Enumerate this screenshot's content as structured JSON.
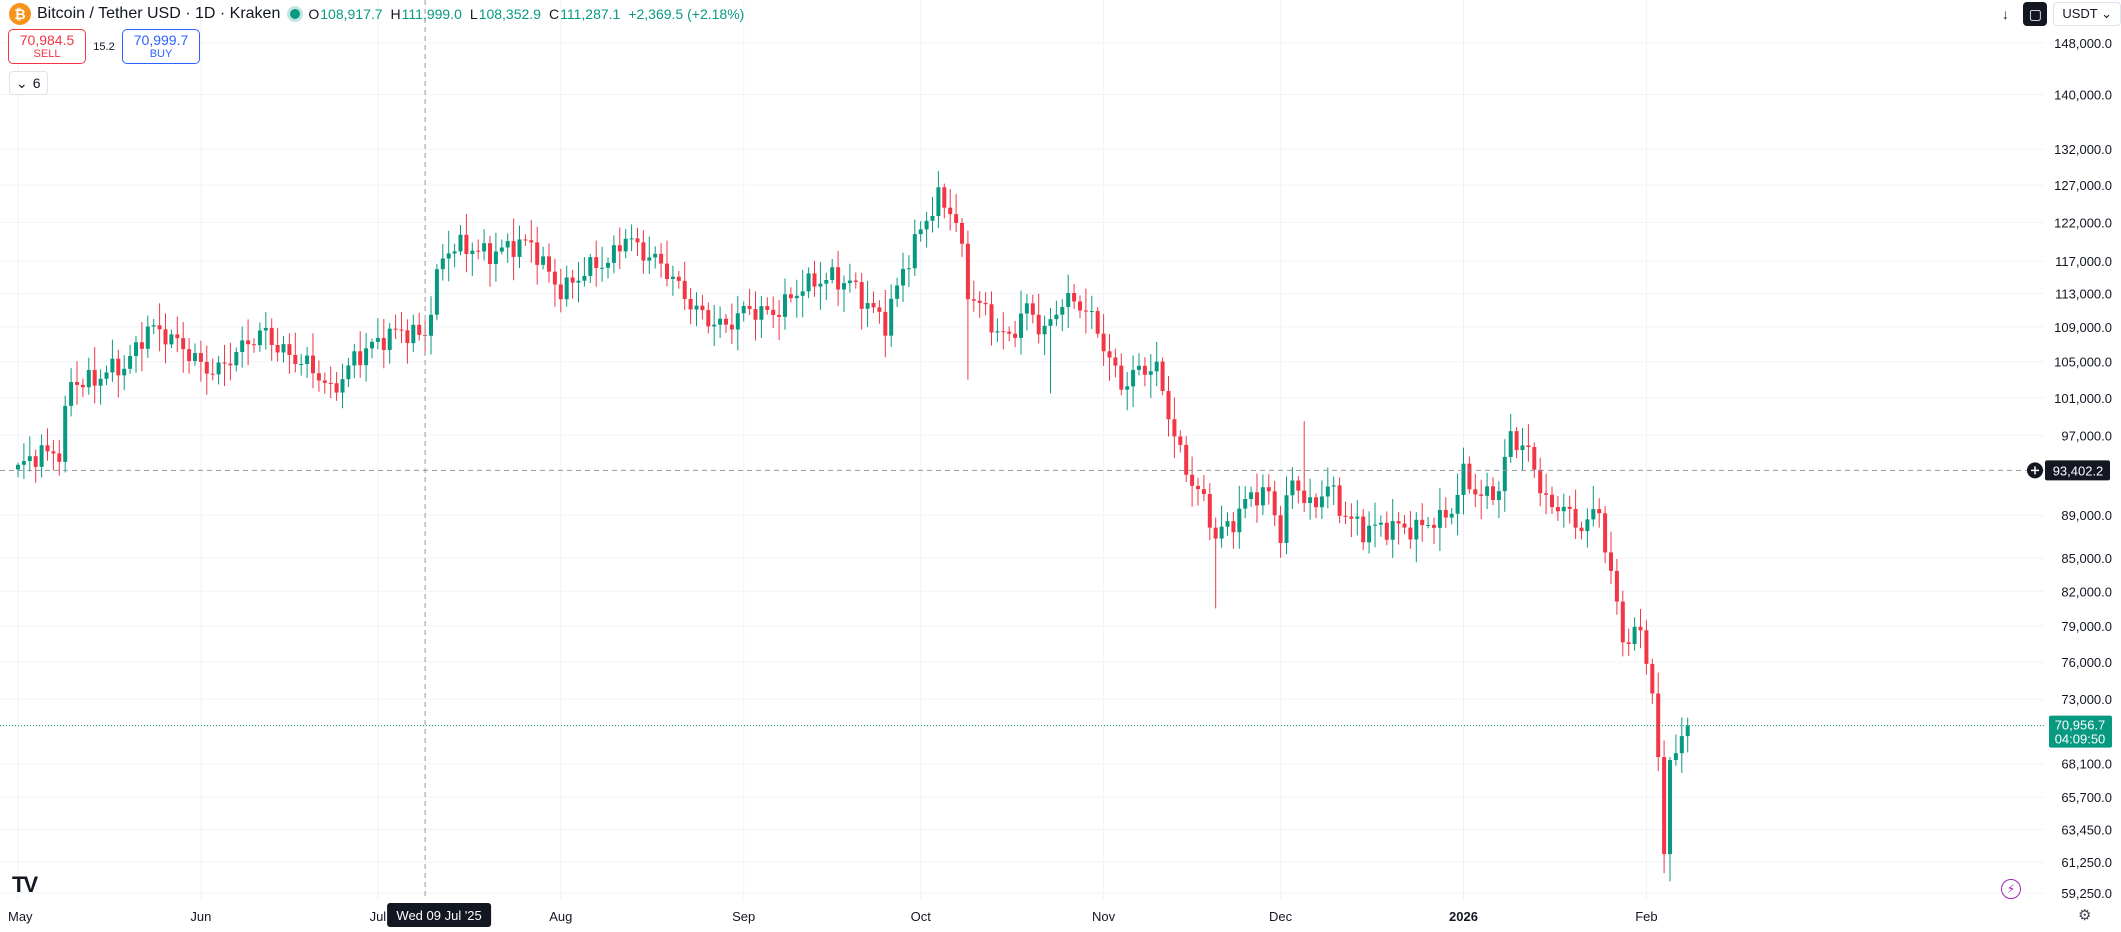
{
  "header": {
    "logo_glyph": "₿",
    "symbol": "Bitcoin / Tether USD · 1D · Kraken",
    "open_label": "O",
    "open": "108,917.7",
    "high_label": "H",
    "high": "111,999.0",
    "low_label": "L",
    "low": "108,352.9",
    "close_label": "C",
    "close": "111,287.1",
    "change": "+2,369.5 (+2.18%)"
  },
  "trade": {
    "sell_price": "70,984.5",
    "sell_label": "SELL",
    "spread": "15.2",
    "buy_price": "70,999.7",
    "buy_label": "BUY"
  },
  "indicator_toggle": {
    "icon": "chevron-down-icon",
    "count": "6"
  },
  "top_right": {
    "currency": "USDT"
  },
  "colors": {
    "up": "#089981",
    "down": "#f23645",
    "grid": "#f0f3fa",
    "text": "#131722"
  },
  "chart_data": {
    "type": "candlestick",
    "title": "Bitcoin / Tether USD · 1D · Kraken",
    "y_ticks": [
      {
        "value": 148000,
        "label": "148,000.0"
      },
      {
        "value": 140000,
        "label": "140,000.0"
      },
      {
        "value": 132000,
        "label": "132,000.0"
      },
      {
        "value": 127000,
        "label": "127,000.0"
      },
      {
        "value": 122000,
        "label": "122,000.0"
      },
      {
        "value": 117000,
        "label": "117,000.0"
      },
      {
        "value": 113000,
        "label": "113,000.0"
      },
      {
        "value": 109000,
        "label": "109,000.0"
      },
      {
        "value": 105000,
        "label": "105,000.0"
      },
      {
        "value": 101000,
        "label": "101,000.0"
      },
      {
        "value": 97000,
        "label": "97,000.0"
      },
      {
        "value": 89000,
        "label": "89,000.0"
      },
      {
        "value": 85000,
        "label": "85,000.0"
      },
      {
        "value": 82000,
        "label": "82,000.0"
      },
      {
        "value": 79000,
        "label": "79,000.0"
      },
      {
        "value": 76000,
        "label": "76,000.0"
      },
      {
        "value": 73000,
        "label": "73,000.0"
      },
      {
        "value": 68100,
        "label": "68,100.0"
      },
      {
        "value": 65700,
        "label": "65,700.0"
      },
      {
        "value": 63450,
        "label": "63,450.0"
      },
      {
        "value": 61250,
        "label": "61,250.0"
      },
      {
        "value": 59250,
        "label": "59,250.0"
      }
    ],
    "x_ticks": [
      {
        "day": 0,
        "label": "May",
        "bold": false
      },
      {
        "day": 31,
        "label": "Jun",
        "bold": false
      },
      {
        "day": 61,
        "label": "Jul",
        "bold": false
      },
      {
        "day": 92,
        "label": "Aug",
        "bold": false
      },
      {
        "day": 123,
        "label": "Sep",
        "bold": false
      },
      {
        "day": 153,
        "label": "Oct",
        "bold": false
      },
      {
        "day": 184,
        "label": "Nov",
        "bold": false
      },
      {
        "day": 214,
        "label": "Dec",
        "bold": false
      },
      {
        "day": 245,
        "label": "2026",
        "bold": true
      },
      {
        "day": 276,
        "label": "Feb",
        "bold": false
      }
    ],
    "crosshair": {
      "day": 69,
      "date_label": "Wed 09 Jul '25",
      "price": 93402.2,
      "price_label": "93,402.2"
    },
    "last_price": {
      "value": 70956.7,
      "label": "70,956.7",
      "countdown": "04:09:50"
    },
    "anchors": [
      {
        "day": 0,
        "price": 93500
      },
      {
        "day": 7,
        "price": 95500
      },
      {
        "day": 9,
        "price": 103500
      },
      {
        "day": 13,
        "price": 102500
      },
      {
        "day": 18,
        "price": 104500
      },
      {
        "day": 22,
        "price": 109500
      },
      {
        "day": 27,
        "price": 106500
      },
      {
        "day": 31,
        "price": 105000
      },
      {
        "day": 34,
        "price": 104500
      },
      {
        "day": 38,
        "price": 106000
      },
      {
        "day": 42,
        "price": 108500
      },
      {
        "day": 47,
        "price": 105500
      },
      {
        "day": 53,
        "price": 101500
      },
      {
        "day": 57,
        "price": 106000
      },
      {
        "day": 62,
        "price": 107000
      },
      {
        "day": 65,
        "price": 108500
      },
      {
        "day": 69,
        "price": 108800
      },
      {
        "day": 72,
        "price": 117500
      },
      {
        "day": 76,
        "price": 118500
      },
      {
        "day": 82,
        "price": 118800
      },
      {
        "day": 87,
        "price": 118500
      },
      {
        "day": 92,
        "price": 114000
      },
      {
        "day": 95,
        "price": 115000
      },
      {
        "day": 100,
        "price": 116500
      },
      {
        "day": 103,
        "price": 121000
      },
      {
        "day": 107,
        "price": 117500
      },
      {
        "day": 112,
        "price": 113500
      },
      {
        "day": 116,
        "price": 111000
      },
      {
        "day": 120,
        "price": 108500
      },
      {
        "day": 124,
        "price": 111000
      },
      {
        "day": 129,
        "price": 111500
      },
      {
        "day": 134,
        "price": 113500
      },
      {
        "day": 138,
        "price": 115500
      },
      {
        "day": 141,
        "price": 114800
      },
      {
        "day": 144,
        "price": 111000
      },
      {
        "day": 147,
        "price": 109000
      },
      {
        "day": 150,
        "price": 116500
      },
      {
        "day": 153,
        "price": 121500
      },
      {
        "day": 156,
        "price": 124500
      },
      {
        "day": 159,
        "price": 122000
      },
      {
        "day": 161,
        "price": 113500
      },
      {
        "day": 163,
        "price": 112500
      },
      {
        "day": 166,
        "price": 108500
      },
      {
        "day": 168,
        "price": 107000
      },
      {
        "day": 171,
        "price": 111000
      },
      {
        "day": 174,
        "price": 109000
      },
      {
        "day": 177,
        "price": 112500
      },
      {
        "day": 181,
        "price": 110500
      },
      {
        "day": 184,
        "price": 107000
      },
      {
        "day": 187,
        "price": 103000
      },
      {
        "day": 190,
        "price": 104000
      },
      {
        "day": 193,
        "price": 103500
      },
      {
        "day": 196,
        "price": 97000
      },
      {
        "day": 198,
        "price": 94000
      },
      {
        "day": 201,
        "price": 90500
      },
      {
        "day": 203,
        "price": 86500
      },
      {
        "day": 206,
        "price": 88000
      },
      {
        "day": 209,
        "price": 91500
      },
      {
        "day": 212,
        "price": 91500
      },
      {
        "day": 214,
        "price": 87000
      },
      {
        "day": 216,
        "price": 92000
      },
      {
        "day": 219,
        "price": 89500
      },
      {
        "day": 222,
        "price": 92500
      },
      {
        "day": 225,
        "price": 89000
      },
      {
        "day": 228,
        "price": 87000
      },
      {
        "day": 231,
        "price": 87800
      },
      {
        "day": 234,
        "price": 88500
      },
      {
        "day": 237,
        "price": 87700
      },
      {
        "day": 241,
        "price": 88000
      },
      {
        "day": 243,
        "price": 89500
      },
      {
        "day": 245,
        "price": 93500
      },
      {
        "day": 248,
        "price": 91000
      },
      {
        "day": 251,
        "price": 91000
      },
      {
        "day": 253,
        "price": 96500
      },
      {
        "day": 256,
        "price": 95500
      },
      {
        "day": 258,
        "price": 92500
      },
      {
        "day": 260,
        "price": 89500
      },
      {
        "day": 262,
        "price": 90000
      },
      {
        "day": 264,
        "price": 87000
      },
      {
        "day": 266,
        "price": 88500
      },
      {
        "day": 268,
        "price": 89500
      },
      {
        "day": 270,
        "price": 84000
      },
      {
        "day": 272,
        "price": 78000
      },
      {
        "day": 275,
        "price": 78000
      },
      {
        "day": 277,
        "price": 73500
      },
      {
        "day": 279,
        "price": 62000
      },
      {
        "day": 280,
        "price": 69000
      },
      {
        "day": 282,
        "price": 69800
      },
      {
        "day": 283,
        "price": 70956.7
      }
    ],
    "days": 284,
    "ylim_log": true
  }
}
